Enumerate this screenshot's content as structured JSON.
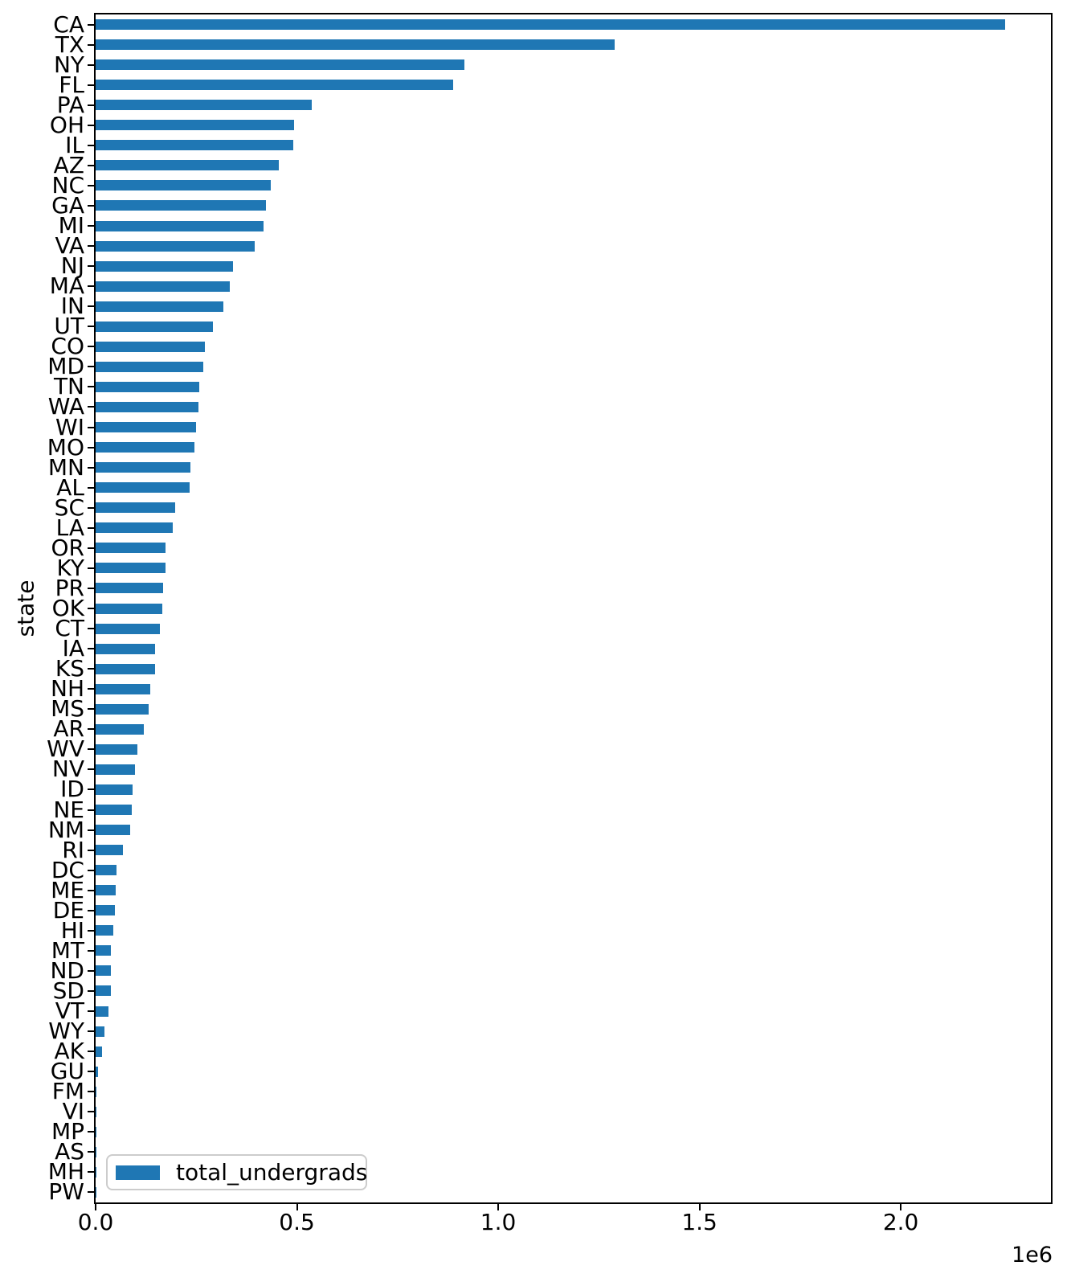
{
  "chart_data": {
    "type": "bar",
    "orientation": "horizontal",
    "title": "",
    "xlabel": "",
    "ylabel": "state",
    "x_offset_text": "1e6",
    "legend": {
      "label": "total_undergrads",
      "position": "lower left"
    },
    "bar_color": "#1f77b4",
    "grid": false,
    "xlim": [
      0,
      2373000
    ],
    "x_ticks": {
      "values": [
        0,
        500000,
        1000000,
        1500000,
        2000000
      ],
      "labels": [
        "0.0",
        "0.5",
        "1.0",
        "1.5",
        "2.0"
      ]
    },
    "categories": [
      "CA",
      "TX",
      "NY",
      "FL",
      "PA",
      "OH",
      "IL",
      "AZ",
      "NC",
      "GA",
      "MI",
      "VA",
      "NJ",
      "MA",
      "IN",
      "UT",
      "CO",
      "MD",
      "TN",
      "WA",
      "WI",
      "MO",
      "MN",
      "AL",
      "SC",
      "LA",
      "OR",
      "KY",
      "PR",
      "OK",
      "CT",
      "IA",
      "KS",
      "NH",
      "MS",
      "AR",
      "WV",
      "NV",
      "ID",
      "NE",
      "NM",
      "RI",
      "DC",
      "ME",
      "DE",
      "HI",
      "MT",
      "ND",
      "SD",
      "VT",
      "WY",
      "AK",
      "GU",
      "FM",
      "VI",
      "MP",
      "AS",
      "MH",
      "PW"
    ],
    "values": [
      2259000,
      1290000,
      916000,
      888000,
      536000,
      493000,
      490000,
      455000,
      435000,
      423000,
      417000,
      396000,
      341000,
      333000,
      317000,
      291000,
      272000,
      268000,
      257000,
      255000,
      249000,
      245000,
      236000,
      234000,
      197000,
      191000,
      174000,
      173000,
      167000,
      165000,
      159000,
      148000,
      147000,
      136000,
      132000,
      120000,
      104000,
      98000,
      92000,
      90000,
      86000,
      68000,
      52000,
      50000,
      47000,
      43000,
      37000,
      37000,
      37000,
      31000,
      22000,
      15000,
      5000,
      2000,
      2000,
      1300,
      1200,
      900,
      500
    ]
  }
}
